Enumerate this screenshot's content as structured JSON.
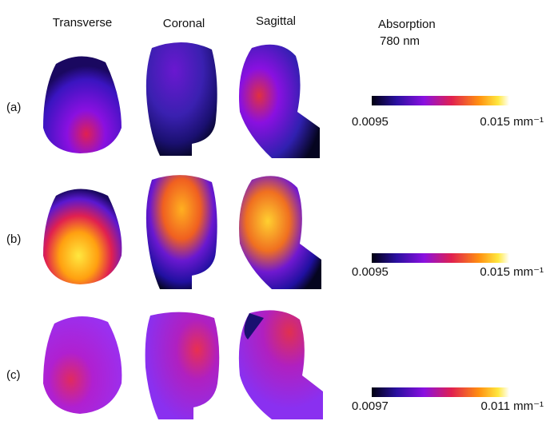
{
  "columns": [
    "Transverse",
    "Coronal",
    "Sagittal"
  ],
  "legend": {
    "title": "Absorption",
    "subtitle": "780 nm"
  },
  "rows": [
    {
      "label": "(a)",
      "colorbar": {
        "min": "0.0095",
        "max": "0.015 mm⁻¹"
      }
    },
    {
      "label": "(b)",
      "colorbar": {
        "min": "0.0095",
        "max": "0.015 mm⁻¹"
      }
    },
    {
      "label": "(c)",
      "colorbar": {
        "min": "0.0097",
        "max": "0.011 mm⁻¹"
      }
    }
  ]
}
